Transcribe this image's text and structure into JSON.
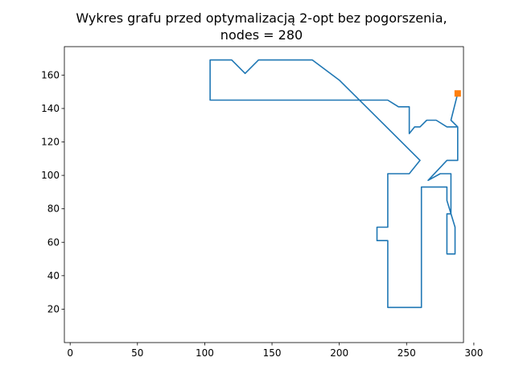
{
  "chart_data": {
    "type": "line",
    "title_line1": "Wykres grafu przed optymalizacją 2-opt bez pogorszenia,",
    "title_line2": "nodes = 280",
    "xlabel": "",
    "ylabel": "",
    "xlim": [
      -4.3,
      292.3
    ],
    "ylim": [
      0.0,
      177.0
    ],
    "xticks": [
      0,
      50,
      100,
      150,
      200,
      250,
      300
    ],
    "yticks": [
      20,
      40,
      60,
      80,
      100,
      120,
      140,
      160
    ],
    "grid": false,
    "series": [
      {
        "name": "tour",
        "color": "#1f77b4",
        "points": [
          [
            288,
            149
          ],
          [
            283,
            133
          ],
          [
            288,
            129
          ],
          [
            288,
            109
          ],
          [
            280,
            109
          ],
          [
            266,
            97
          ],
          [
            275,
            101
          ],
          [
            283,
            101
          ],
          [
            283,
            77
          ],
          [
            280,
            77
          ],
          [
            280,
            53
          ],
          [
            286,
            53
          ],
          [
            286,
            69
          ],
          [
            280,
            85
          ],
          [
            280,
            93
          ],
          [
            261,
            93
          ],
          [
            261,
            21
          ],
          [
            252,
            21
          ],
          [
            236,
            21
          ],
          [
            236,
            53
          ],
          [
            236,
            61
          ],
          [
            228,
            61
          ],
          [
            228,
            69
          ],
          [
            236,
            69
          ],
          [
            236,
            101
          ],
          [
            252,
            101
          ],
          [
            252,
            101
          ],
          [
            260,
            109
          ],
          [
            240,
            125
          ],
          [
            220,
            141
          ],
          [
            200,
            157
          ],
          [
            180,
            169
          ],
          [
            170,
            169
          ],
          [
            160,
            169
          ],
          [
            150,
            169
          ],
          [
            140,
            169
          ],
          [
            130,
            161
          ],
          [
            120,
            169
          ],
          [
            110,
            169
          ],
          [
            104,
            169
          ],
          [
            104,
            161
          ],
          [
            104,
            145
          ],
          [
            120,
            145
          ],
          [
            140,
            145
          ],
          [
            160,
            145
          ],
          [
            190,
            145
          ],
          [
            220,
            145
          ],
          [
            236,
            145
          ],
          [
            244,
            141
          ],
          [
            252,
            141
          ],
          [
            252,
            125
          ],
          [
            256,
            129
          ],
          [
            260,
            129
          ],
          [
            265,
            133
          ],
          [
            272,
            133
          ],
          [
            280,
            129
          ],
          [
            288,
            129
          ]
        ]
      },
      {
        "name": "start",
        "color": "#ff7f0e",
        "points": [
          [
            288,
            149
          ]
        ]
      }
    ]
  }
}
